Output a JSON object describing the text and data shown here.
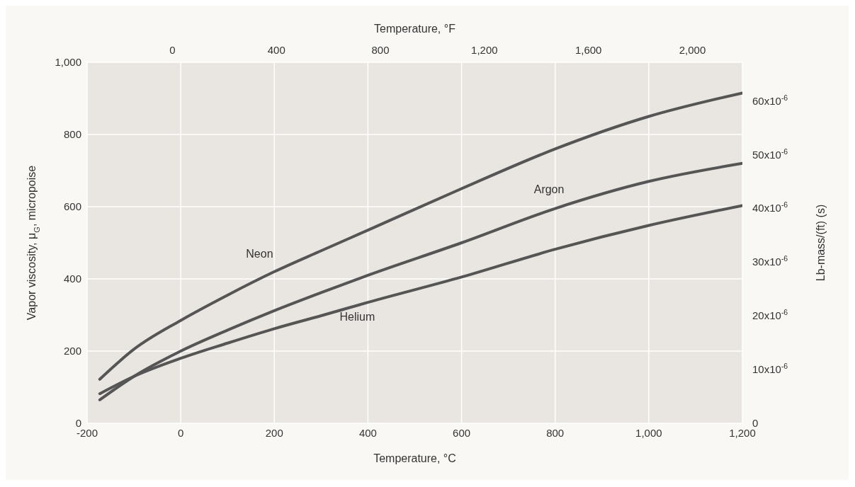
{
  "chart_data": {
    "type": "line",
    "xlabel": "Temperature, °C",
    "x2label": "Temperature, °F",
    "ylabel": "Vapor viscosity, μ$_{G}$, micropoise",
    "y2label": "Lb-mass/(ft) (s)",
    "x": [
      -173,
      -100,
      0,
      100,
      200,
      300,
      400,
      600,
      800,
      1000,
      1200
    ],
    "series": [
      {
        "name": "Neon",
        "color": "#555555",
        "values": [
          122,
          205,
          285,
          355,
          420,
          478,
          535,
          650,
          760,
          850,
          915
        ]
      },
      {
        "name": "Argon",
        "color": "#555555",
        "values": [
          65,
          130,
          200,
          258,
          312,
          362,
          410,
          500,
          595,
          670,
          720
        ]
      },
      {
        "name": "Helium",
        "color": "#555555",
        "values": [
          82,
          130,
          180,
          222,
          262,
          298,
          335,
          405,
          482,
          548,
          603
        ]
      }
    ],
    "xlim": [
      -200,
      1200
    ],
    "xticks": [
      -200,
      0,
      200,
      400,
      600,
      800,
      {
        "value": 1000,
        "label": "1,000"
      },
      {
        "value": 1200,
        "label": "1,200"
      }
    ],
    "x2lim": [
      -328,
      2192
    ],
    "x2ticks": [
      0,
      400,
      800,
      {
        "value": 1200,
        "label": "1,200"
      },
      {
        "value": 1600,
        "label": "1,600"
      },
      {
        "value": 2000,
        "label": "2,000"
      }
    ],
    "ylim": [
      0,
      1000
    ],
    "yticks": [
      0,
      200,
      400,
      600,
      800,
      {
        "value": 1000,
        "label": "1,000"
      }
    ],
    "y2lim": [
      0,
      6.72e-05
    ],
    "y2ticks": [
      0,
      {
        "value": 1e-05,
        "label": "10x10$^{-6}$"
      },
      {
        "value": 2e-05,
        "label": "20x10$^{-6}$"
      },
      {
        "value": 3e-05,
        "label": "30x10$^{-6}$"
      },
      {
        "value": 4e-05,
        "label": "40x10$^{-6}$"
      },
      {
        "value": 5e-05,
        "label": "50x10$^{-6}$"
      },
      {
        "value": 6e-05,
        "label": "60x10$^{-6}$"
      }
    ],
    "grid": true,
    "legend": false,
    "marker": "none",
    "line_style": "solid"
  }
}
